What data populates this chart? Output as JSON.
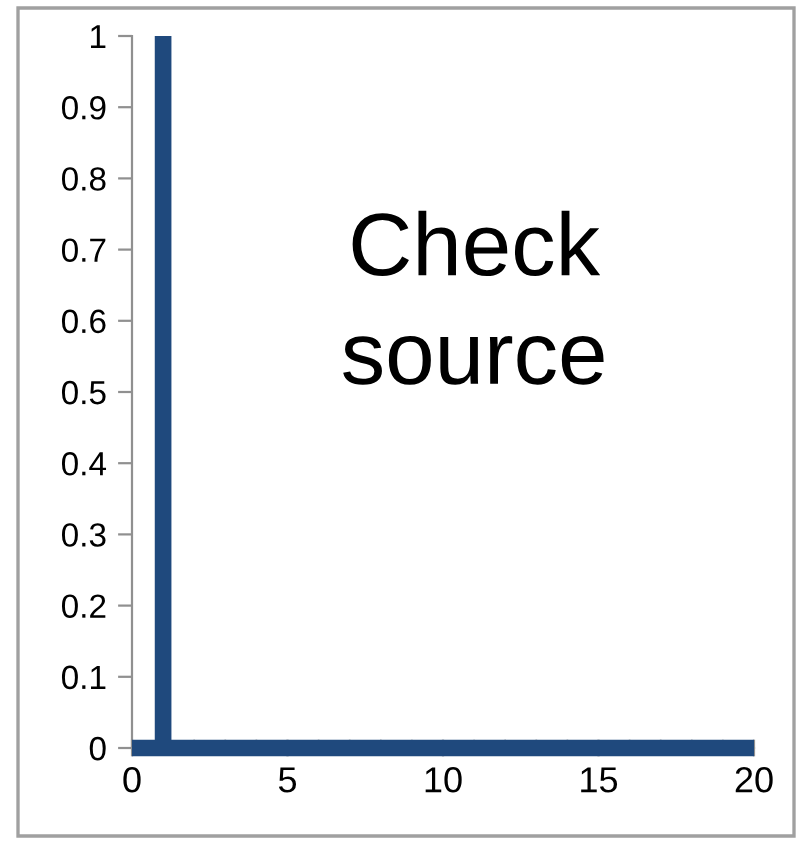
{
  "chart_data": {
    "type": "line",
    "x": [
      0,
      1,
      1,
      1,
      20
    ],
    "series": [
      {
        "color": "#1f497d",
        "values": [
          0,
          0,
          1,
          0,
          0
        ]
      }
    ],
    "xlim": [
      0,
      20
    ],
    "xticks": [
      0,
      5,
      10,
      15,
      20
    ],
    "ylim": [
      0,
      1
    ],
    "yticks": [
      0,
      0.1,
      0.2,
      0.3,
      0.4,
      0.5,
      0.6,
      0.7,
      0.8,
      0.9,
      1
    ],
    "grid": false,
    "legend": false,
    "marker": "none",
    "line_style": "solid",
    "annotations": [
      "Check\nsource"
    ]
  }
}
